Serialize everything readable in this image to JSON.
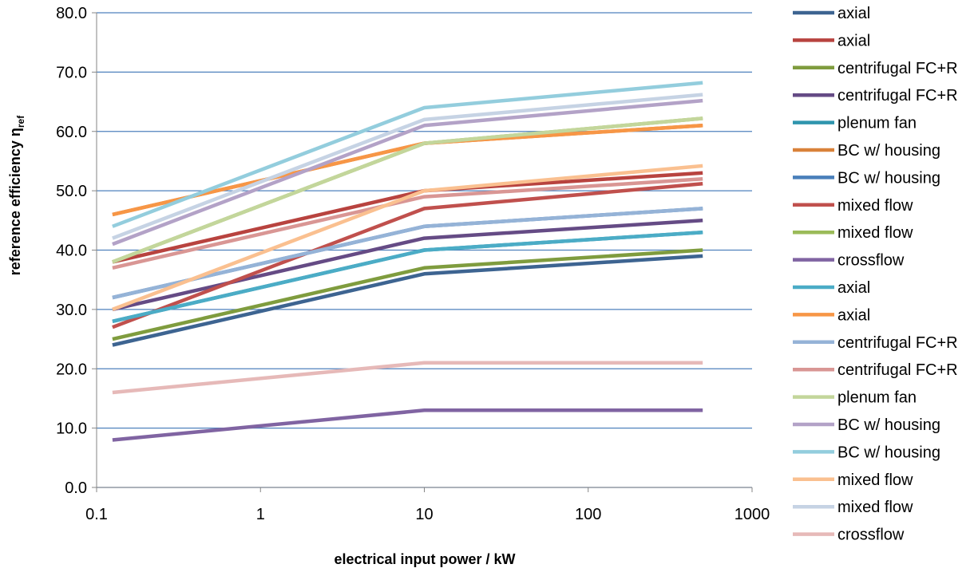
{
  "chart_data": {
    "type": "line",
    "xscale": "log",
    "xlabel": "electrical input power / kW",
    "ylabel": "reference efficiency η",
    "ylabel_sub": "ref",
    "xlim": [
      0.1,
      1000
    ],
    "ylim": [
      0,
      80
    ],
    "x_ticks": [
      "0.1",
      "1",
      "10",
      "100",
      "1000"
    ],
    "y_ticks": [
      "0.0",
      "10.0",
      "20.0",
      "30.0",
      "40.0",
      "50.0",
      "60.0",
      "70.0",
      "80.0"
    ],
    "grid": "horizontal",
    "legend_position": "right",
    "x": [
      0.125,
      10,
      500
    ],
    "series": [
      {
        "name": "axial",
        "color": "#3d6491",
        "values": [
          24,
          36,
          39
        ]
      },
      {
        "name": "axial",
        "color": "#b8433f",
        "values": [
          38,
          50,
          53
        ]
      },
      {
        "name": "centrifugal FC+R",
        "color": "#7f9c3e",
        "values": [
          25,
          37,
          40
        ]
      },
      {
        "name": "centrifugal FC+R",
        "color": "#654b85",
        "values": [
          30,
          42,
          45
        ]
      },
      {
        "name": "plenum fan",
        "color": "#2f95ad",
        "values": [
          28,
          40,
          43
        ]
      },
      {
        "name": "BC w/ housing",
        "color": "#d9823a",
        "values": [
          46,
          58,
          61
        ]
      },
      {
        "name": "BC w/ housing",
        "color": "#4a7fba",
        "values": [
          32,
          44,
          47
        ]
      },
      {
        "name": "mixed flow",
        "color": "#c0504d",
        "values": [
          27,
          47,
          51.2
        ]
      },
      {
        "name": "mixed flow",
        "color": "#9bbb59",
        "values": [
          38,
          58,
          62.2
        ]
      },
      {
        "name": "crossflow",
        "color": "#8064a2",
        "values": [
          8,
          13,
          13
        ]
      },
      {
        "name": "axial",
        "color": "#4bacc6",
        "values": [
          28,
          40,
          43
        ]
      },
      {
        "name": "axial",
        "color": "#f79646",
        "values": [
          46,
          58,
          61
        ]
      },
      {
        "name": "centrifugal FC+R",
        "color": "#95b3d7",
        "values": [
          32,
          44,
          47
        ]
      },
      {
        "name": "centrifugal FC+R",
        "color": "#d99694",
        "values": [
          37,
          49,
          52
        ]
      },
      {
        "name": "plenum fan",
        "color": "#c3d69b",
        "values": [
          38,
          58,
          62.2
        ]
      },
      {
        "name": "BC w/ housing",
        "color": "#b3a2c7",
        "values": [
          41,
          61,
          65.2
        ]
      },
      {
        "name": "BC w/ housing",
        "color": "#93cddd",
        "values": [
          44,
          64,
          68.2
        ]
      },
      {
        "name": "mixed flow",
        "color": "#fac090",
        "values": [
          30,
          50,
          54.2
        ]
      },
      {
        "name": "mixed flow",
        "color": "#c6d3e4",
        "values": [
          42,
          62,
          66.2
        ]
      },
      {
        "name": "crossflow",
        "color": "#e6b9b8",
        "values": [
          16,
          21,
          21
        ]
      }
    ]
  }
}
